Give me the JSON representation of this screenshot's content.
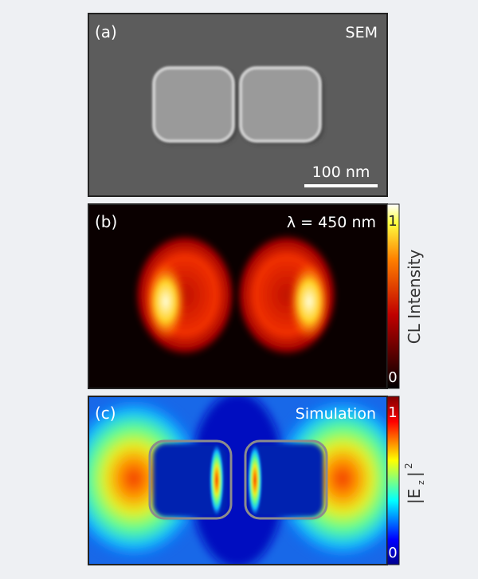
{
  "panels": [
    {
      "label": "(a)",
      "title": "SEM",
      "scale_bar": "100 nm"
    },
    {
      "label": "(b)",
      "title": "λ = 450 nm",
      "colorbar": {
        "max": "1",
        "min": "0",
        "label": "CL Intensity"
      }
    },
    {
      "label": "(c)",
      "title": "Simulation",
      "colorbar": {
        "max": "1",
        "min": "0",
        "label_main": "|E",
        "label_sub": "z",
        "label_end": "|",
        "label_sup": "2"
      }
    }
  ]
}
